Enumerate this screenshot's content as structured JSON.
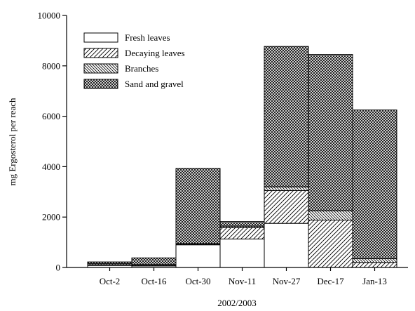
{
  "chart_data": {
    "type": "stacked_bar",
    "y_label": "mg Ergosterol per reach",
    "x_label": "2002/2003",
    "categories": [
      "Oct-2",
      "Oct-16",
      "Oct-30",
      "Nov-11",
      "Nov-27",
      "Dec-17",
      "Jan-13"
    ],
    "series": [
      {
        "name": "Fresh leaves",
        "color": "#ffffff",
        "hatch": "none",
        "values": [
          80,
          60,
          900,
          1130,
          1750,
          0,
          0
        ]
      },
      {
        "name": "Decaying leaves",
        "color": "#ffffff",
        "hatch": "diagonal-up",
        "values": [
          30,
          20,
          30,
          450,
          1300,
          1880,
          200
        ]
      },
      {
        "name": "Branches",
        "color": "#ffffff",
        "hatch": "diagonal-down",
        "values": [
          50,
          40,
          20,
          60,
          150,
          370,
          150
        ]
      },
      {
        "name": "Sand and gravel",
        "color": "#ffffff",
        "hatch": "crosshatch",
        "values": [
          60,
          260,
          2980,
          180,
          5570,
          6200,
          5900
        ]
      }
    ],
    "ylim": [
      0,
      10000
    ],
    "yticks": [
      0,
      2000,
      4000,
      6000,
      8000,
      10000
    ],
    "legend": "upper-left"
  }
}
